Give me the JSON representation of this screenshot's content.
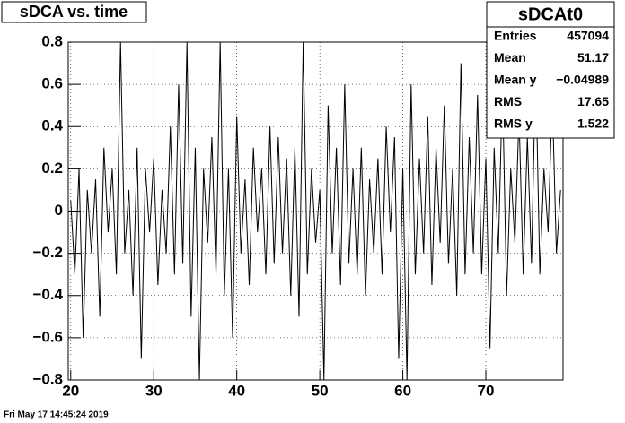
{
  "chart_data": {
    "type": "line",
    "title": "sDCA vs. time",
    "x": [
      20,
      20.5,
      21,
      21.5,
      22,
      22.5,
      23,
      23.5,
      24,
      24.5,
      25,
      25.5,
      26,
      26.5,
      27,
      27.5,
      28,
      28.5,
      29,
      29.5,
      30,
      30.5,
      31,
      31.5,
      32,
      32.5,
      33,
      33.5,
      34,
      34.5,
      35,
      35.5,
      36,
      36.5,
      37,
      37.5,
      38,
      38.5,
      39,
      39.5,
      40,
      40.5,
      41,
      41.5,
      42,
      42.5,
      43,
      43.5,
      44,
      44.5,
      45,
      45.5,
      46,
      46.5,
      47,
      47.5,
      48,
      48.5,
      49,
      49.5,
      50,
      50.5,
      51,
      51.5,
      52,
      52.5,
      53,
      53.5,
      54,
      54.5,
      55,
      55.5,
      56,
      56.5,
      57,
      57.5,
      58,
      58.5,
      59,
      59.5,
      60,
      60.5,
      61,
      61.5,
      62,
      62.5,
      63,
      63.5,
      64,
      64.5,
      65,
      65.5,
      66,
      66.5,
      67,
      67.5,
      68,
      68.5,
      69,
      69.5,
      70,
      70.5,
      71,
      71.5,
      72,
      72.5,
      73,
      73.5,
      74,
      74.5,
      75,
      75.5,
      76,
      76.5,
      77,
      77.5,
      78,
      78.5,
      79
    ],
    "series": [
      {
        "color": "#000000",
        "values": [
          0.05,
          -0.3,
          0.2,
          -0.6,
          0.1,
          -0.2,
          0.15,
          -0.5,
          0.3,
          -0.1,
          0.2,
          -0.3,
          0.8,
          -0.2,
          0.1,
          -0.4,
          0.3,
          -0.7,
          0.2,
          -0.1,
          0.25,
          -0.35,
          0.1,
          -0.2,
          0.4,
          -0.3,
          0.6,
          -0.25,
          0.8,
          -0.5,
          0.3,
          -0.8,
          0.2,
          -0.15,
          0.35,
          -0.3,
          0.8,
          -0.4,
          0.2,
          -0.6,
          0.45,
          -0.2,
          0.15,
          -0.35,
          0.3,
          -0.1,
          0.2,
          -0.3,
          0.4,
          -0.25,
          0.35,
          -0.2,
          0.25,
          -0.4,
          0.3,
          -0.5,
          0.8,
          -0.3,
          0.2,
          -0.15,
          0.1,
          -0.8,
          0.5,
          -0.2,
          0.3,
          -0.35,
          0.6,
          -0.25,
          0.2,
          -0.3,
          0.3,
          -0.4,
          0.15,
          -0.2,
          0.25,
          -0.3,
          0.4,
          -0.1,
          0.35,
          -0.7,
          0.2,
          -0.8,
          0.6,
          -0.3,
          0.25,
          -0.2,
          0.45,
          -0.35,
          0.3,
          -0.15,
          0.5,
          -0.25,
          0.2,
          -0.4,
          0.7,
          -0.3,
          0.35,
          -0.2,
          0.55,
          -0.3,
          0.25,
          -0.65,
          0.3,
          -0.2,
          0.6,
          -0.4,
          0.2,
          -0.15,
          0.45,
          -0.3,
          0.35,
          -0.25,
          0.7,
          -0.3,
          0.2,
          -0.1,
          0.55,
          -0.2,
          0.1
        ]
      }
    ],
    "xlim": [
      19.7,
      79.3
    ],
    "xticks": [
      20,
      30,
      40,
      50,
      60,
      70
    ],
    "ylim": [
      -0.8,
      0.8
    ],
    "yticks": [
      {
        "value": -0.8,
        "label": "−0.8"
      },
      {
        "value": -0.6,
        "label": "−0.6"
      },
      {
        "value": -0.4,
        "label": "−0.4"
      },
      {
        "value": -0.2,
        "label": "−0.2"
      },
      0,
      0.2,
      0.4,
      0.6,
      0.8
    ],
    "grid": true,
    "stats": {
      "title": "sDCAt0",
      "rows": [
        {
          "label": "Entries",
          "value": "457094"
        },
        {
          "label": "Mean",
          "value": "51.17"
        },
        {
          "label": "Mean y",
          "value": "−0.04989"
        },
        {
          "label": "RMS",
          "value": "17.65"
        },
        {
          "label": "RMS y",
          "value": "1.522"
        }
      ]
    },
    "footer": "Fri May 17 14:45:24 2019"
  }
}
